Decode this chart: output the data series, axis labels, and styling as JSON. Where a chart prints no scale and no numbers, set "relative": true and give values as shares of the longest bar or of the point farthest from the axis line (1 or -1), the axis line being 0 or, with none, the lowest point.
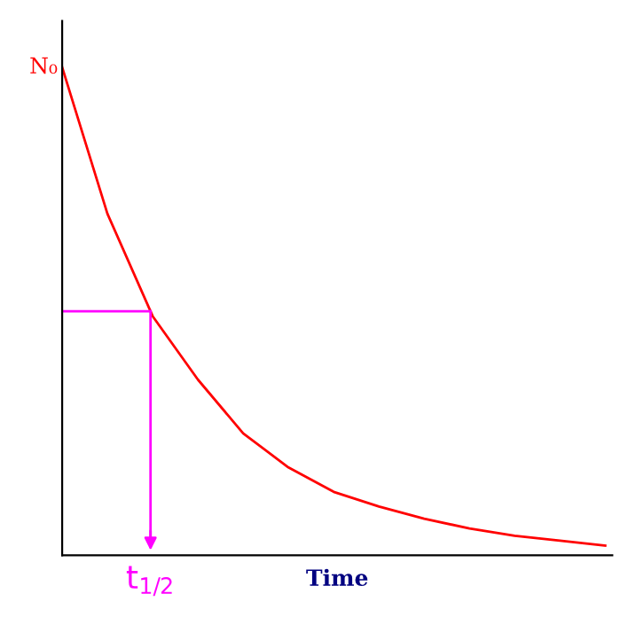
{
  "chart_data": {
    "type": "line",
    "relative": true,
    "xlabel": "Time",
    "categories": [
      null,
      null,
      null,
      null,
      null,
      null,
      null,
      null,
      null,
      null,
      null,
      null,
      null
    ],
    "series": [
      {
        "color": "#ff0000",
        "values": [
          1.0,
          0.7,
          0.49,
          0.36,
          0.25,
          0.18,
          0.13,
          0.1,
          0.075,
          0.055,
          0.04,
          0.03,
          0.02
        ]
      }
    ],
    "annotations": [
      "N₀",
      {
        "text": "t$_{1/2}$",
        "y": 0.5
      }
    ],
    "grid": false,
    "legend": false,
    "marker": "none",
    "line_style": "solid"
  }
}
